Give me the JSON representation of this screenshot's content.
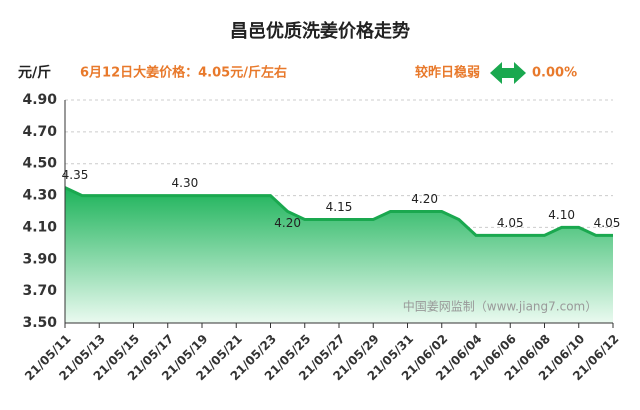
{
  "chart_data": {
    "type": "area",
    "title": "昌邑优质洗姜价格走势",
    "y_label": "元/斤",
    "annotation": "6月12日大姜价格：4.05元/斤左右",
    "change_label": "较昨日稳弱",
    "change_value": "0.00%",
    "watermark": "中国姜网监制（www.jiang7.com）",
    "categories": [
      "21/05/11",
      null,
      "21/05/13",
      null,
      "21/05/15",
      null,
      "21/05/17",
      null,
      "21/05/19",
      null,
      "21/05/21",
      null,
      "21/05/23",
      null,
      "21/05/25",
      null,
      "21/05/27",
      null,
      "21/05/29",
      null,
      "21/05/31",
      null,
      "21/06/02",
      null,
      "21/06/04",
      null,
      "21/06/06",
      null,
      "21/06/08",
      null,
      "21/06/10",
      null,
      "21/06/12"
    ],
    "values": [
      4.35,
      4.3,
      4.3,
      4.3,
      4.3,
      4.3,
      4.3,
      4.3,
      4.3,
      4.3,
      4.3,
      4.3,
      4.3,
      4.2,
      4.15,
      4.15,
      4.15,
      4.15,
      4.15,
      4.2,
      4.2,
      4.2,
      4.2,
      4.15,
      4.05,
      4.05,
      4.05,
      4.05,
      4.05,
      4.1,
      4.1,
      4.05,
      4.05
    ],
    "value_labels": [
      "4.35",
      null,
      null,
      null,
      null,
      null,
      null,
      "4.30",
      null,
      null,
      null,
      null,
      null,
      "4.20",
      null,
      null,
      "4.15",
      null,
      null,
      null,
      null,
      "4.20",
      null,
      null,
      null,
      null,
      "4.05",
      null,
      null,
      "4.10",
      null,
      null,
      "4.05"
    ],
    "color": "#1aa84f",
    "ylim": [
      3.5,
      4.9
    ],
    "yticks": [
      {
        "value": 3.5,
        "label": "3.50"
      },
      {
        "value": 3.7,
        "label": "3.70"
      },
      {
        "value": 3.9,
        "label": "3.90"
      },
      {
        "value": 4.1,
        "label": "4.10"
      },
      {
        "value": 4.3,
        "label": "4.30"
      },
      {
        "value": 4.5,
        "label": "4.50"
      },
      {
        "value": 4.7,
        "label": "4.70"
      },
      {
        "value": 4.9,
        "label": "4.90"
      }
    ],
    "grid": true
  }
}
